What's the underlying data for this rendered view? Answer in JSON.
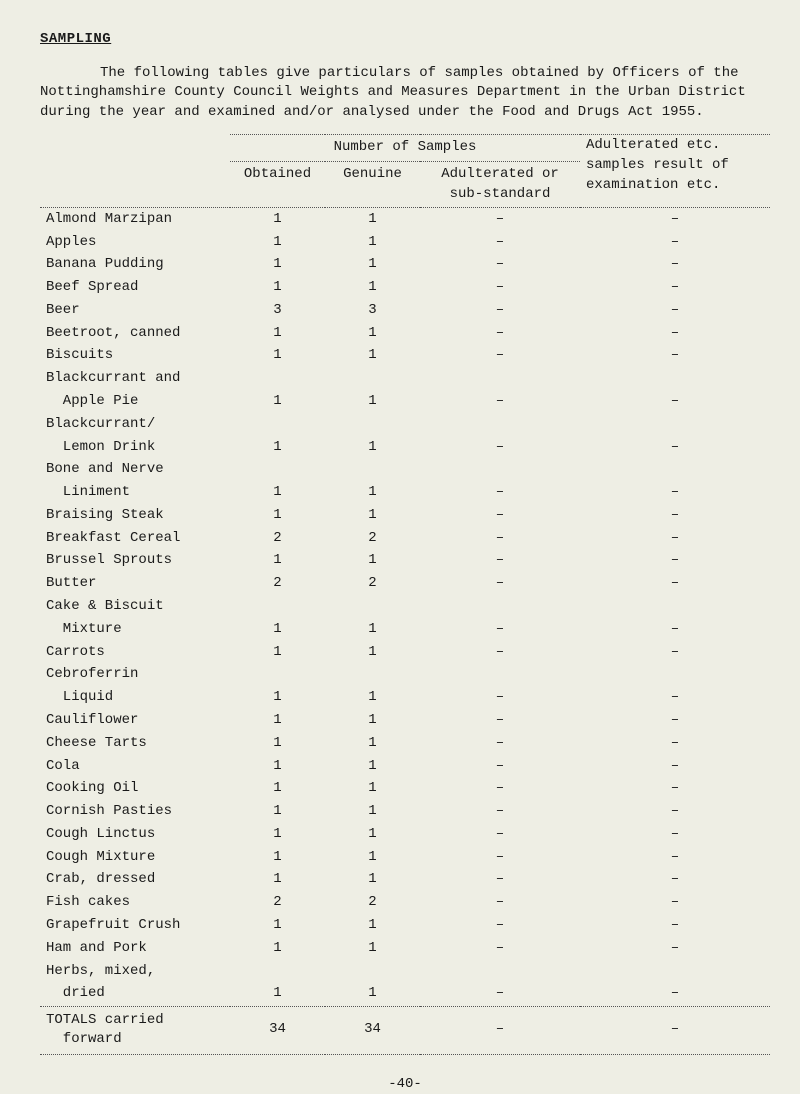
{
  "heading": "SAMPLING",
  "intro": "The following tables give particulars of samples obtained by Officers of the Nottinghamshire County Council Weights and Measures Department in the Urban District during the year and examined and/or analysed under the Food and Drugs Act 1955.",
  "headers": {
    "group": "Number of Samples",
    "obtained": "Obtained",
    "genuine": "Genuine",
    "adulterated": "Adulterated or\nsub-standard",
    "result": "Adulterated etc.\nsamples result of\nexamination etc."
  },
  "rows": [
    {
      "label": "Almond Marzipan",
      "obtained": "1",
      "genuine": "1",
      "adult": "–",
      "result": "–"
    },
    {
      "label": "Apples",
      "obtained": "1",
      "genuine": "1",
      "adult": "–",
      "result": "–"
    },
    {
      "label": "Banana Pudding",
      "obtained": "1",
      "genuine": "1",
      "adult": "–",
      "result": "–"
    },
    {
      "label": "Beef Spread",
      "obtained": "1",
      "genuine": "1",
      "adult": "–",
      "result": "–"
    },
    {
      "label": "Beer",
      "obtained": "3",
      "genuine": "3",
      "adult": "–",
      "result": "–"
    },
    {
      "label": "Beetroot, canned",
      "obtained": "1",
      "genuine": "1",
      "adult": "–",
      "result": "–"
    },
    {
      "label": "Biscuits",
      "obtained": "1",
      "genuine": "1",
      "adult": "–",
      "result": "–"
    },
    {
      "label": "Blackcurrant and",
      "obtained": "",
      "genuine": "",
      "adult": "",
      "result": ""
    },
    {
      "label": "  Apple Pie",
      "obtained": "1",
      "genuine": "1",
      "adult": "–",
      "result": "–"
    },
    {
      "label": "Blackcurrant/",
      "obtained": "",
      "genuine": "",
      "adult": "",
      "result": ""
    },
    {
      "label": "  Lemon Drink",
      "obtained": "1",
      "genuine": "1",
      "adult": "–",
      "result": "–"
    },
    {
      "label": "Bone and Nerve",
      "obtained": "",
      "genuine": "",
      "adult": "",
      "result": ""
    },
    {
      "label": "  Liniment",
      "obtained": "1",
      "genuine": "1",
      "adult": "–",
      "result": "–"
    },
    {
      "label": "Braising Steak",
      "obtained": "1",
      "genuine": "1",
      "adult": "–",
      "result": "–"
    },
    {
      "label": "Breakfast Cereal",
      "obtained": "2",
      "genuine": "2",
      "adult": "–",
      "result": "–"
    },
    {
      "label": "Brussel Sprouts",
      "obtained": "1",
      "genuine": "1",
      "adult": "–",
      "result": "–"
    },
    {
      "label": "Butter",
      "obtained": "2",
      "genuine": "2",
      "adult": "–",
      "result": "–"
    },
    {
      "label": "Cake & Biscuit",
      "obtained": "",
      "genuine": "",
      "adult": "",
      "result": ""
    },
    {
      "label": "  Mixture",
      "obtained": "1",
      "genuine": "1",
      "adult": "–",
      "result": "–"
    },
    {
      "label": "Carrots",
      "obtained": "1",
      "genuine": "1",
      "adult": "–",
      "result": "–"
    },
    {
      "label": "Cebroferrin",
      "obtained": "",
      "genuine": "",
      "adult": "",
      "result": ""
    },
    {
      "label": "  Liquid",
      "obtained": "1",
      "genuine": "1",
      "adult": "–",
      "result": "–"
    },
    {
      "label": "Cauliflower",
      "obtained": "1",
      "genuine": "1",
      "adult": "–",
      "result": "–"
    },
    {
      "label": "Cheese Tarts",
      "obtained": "1",
      "genuine": "1",
      "adult": "–",
      "result": "–"
    },
    {
      "label": "Cola",
      "obtained": "1",
      "genuine": "1",
      "adult": "–",
      "result": "–"
    },
    {
      "label": "Cooking Oil",
      "obtained": "1",
      "genuine": "1",
      "adult": "–",
      "result": "–"
    },
    {
      "label": "Cornish Pasties",
      "obtained": "1",
      "genuine": "1",
      "adult": "–",
      "result": "–"
    },
    {
      "label": "Cough Linctus",
      "obtained": "1",
      "genuine": "1",
      "adult": "–",
      "result": "–"
    },
    {
      "label": "Cough Mixture",
      "obtained": "1",
      "genuine": "1",
      "adult": "–",
      "result": "–"
    },
    {
      "label": "Crab, dressed",
      "obtained": "1",
      "genuine": "1",
      "adult": "–",
      "result": "–"
    },
    {
      "label": "Fish cakes",
      "obtained": "2",
      "genuine": "2",
      "adult": "–",
      "result": "–"
    },
    {
      "label": "Grapefruit Crush",
      "obtained": "1",
      "genuine": "1",
      "adult": "–",
      "result": "–"
    },
    {
      "label": "Ham and Pork",
      "obtained": "1",
      "genuine": "1",
      "adult": "–",
      "result": "–"
    },
    {
      "label": "Herbs, mixed,",
      "obtained": "",
      "genuine": "",
      "adult": "",
      "result": ""
    },
    {
      "label": "  dried",
      "obtained": "1",
      "genuine": "1",
      "adult": "–",
      "result": "–"
    }
  ],
  "totals": {
    "label": "TOTALS carried\n  forward",
    "obtained": "34",
    "genuine": "34",
    "adult": "–",
    "result": "–"
  },
  "page_num": "-40-"
}
